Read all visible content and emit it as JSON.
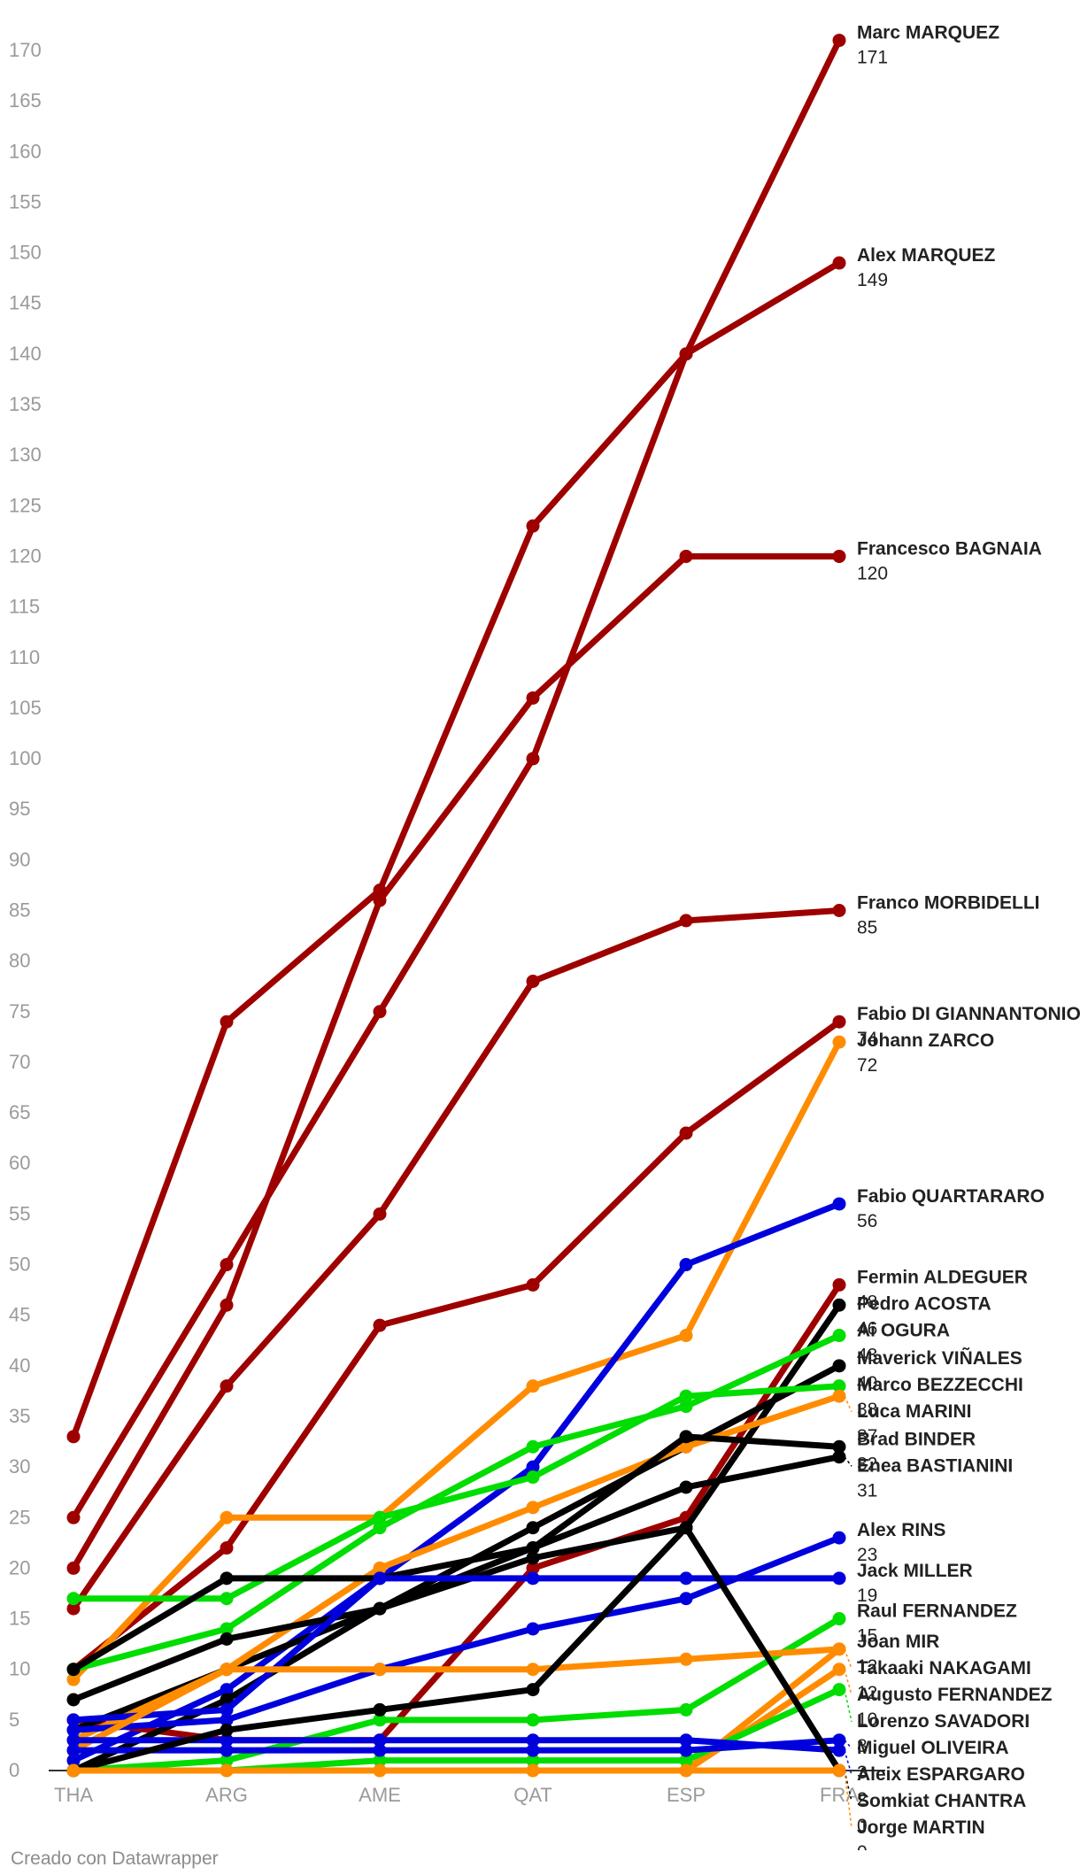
{
  "credit": "Creado con Datawrapper",
  "chart_data": {
    "type": "line",
    "title": "",
    "xlabel": "",
    "ylabel": "",
    "ylim": [
      0,
      170
    ],
    "yticks": [
      0,
      5,
      10,
      15,
      20,
      25,
      30,
      35,
      40,
      45,
      50,
      55,
      60,
      65,
      70,
      75,
      80,
      85,
      90,
      95,
      100,
      105,
      110,
      115,
      120,
      125,
      130,
      135,
      140,
      145,
      150,
      155,
      160,
      165,
      170
    ],
    "categories": [
      "THA",
      "ARG",
      "AME",
      "QAT",
      "ESP",
      "FRA"
    ],
    "colors": {
      "red": "#9e0000",
      "orange": "#ff8c00",
      "green": "#00dd00",
      "blue": "#0000dd",
      "black": "#000000"
    },
    "series": [
      {
        "name": "Marc MARQUEZ",
        "label": "Marc MARQUEZ",
        "color": "red",
        "values": [
          25,
          50,
          75,
          100,
          140,
          171
        ]
      },
      {
        "name": "Alex MARQUEZ",
        "label": "Alex MARQUEZ",
        "color": "red",
        "values": [
          33,
          74,
          87,
          123,
          140,
          149
        ]
      },
      {
        "name": "Francesco BAGNAIA",
        "label": "Francesco BAGNAIA",
        "color": "red",
        "values": [
          20,
          46,
          86,
          106,
          120,
          120
        ]
      },
      {
        "name": "Franco MORBIDELLI",
        "label": "Franco MORBIDELLI",
        "color": "red",
        "values": [
          16,
          38,
          55,
          78,
          84,
          85
        ]
      },
      {
        "name": "Fabio DI GIANNANTONIO",
        "label": "Fabio DI GIANNANTONIO",
        "color": "red",
        "values": [
          10,
          22,
          44,
          48,
          63,
          74
        ]
      },
      {
        "name": "Johann ZARCO",
        "label": "Johann ZARCO",
        "color": "orange",
        "values": [
          9,
          25,
          25,
          38,
          43,
          72
        ]
      },
      {
        "name": "Fabio QUARTARARO",
        "label": "Fabio QUARTARARO",
        "color": "blue",
        "values": [
          1,
          8,
          19,
          30,
          50,
          56
        ]
      },
      {
        "name": "Fermin ALDEGUER",
        "label": "Fermin ALDEGUER",
        "color": "red",
        "values": [
          5,
          3,
          3,
          20,
          25,
          48
        ]
      },
      {
        "name": "Pedro ACOSTA",
        "label": "Pedro ACOSTA",
        "color": "black",
        "values": [
          4,
          10,
          16,
          21,
          24,
          46
        ]
      },
      {
        "name": "Ai OGURA",
        "label": "Ai OGURA",
        "color": "green",
        "values": [
          10,
          14,
          24,
          32,
          36,
          43
        ]
      },
      {
        "name": "Maverick VIÑALES",
        "label": "Maverick VIÑALES",
        "color": "black",
        "values": [
          0,
          7,
          16,
          24,
          32,
          40
        ]
      },
      {
        "name": "Marco BEZZECCHI",
        "label": "Marco BEZZECCHI",
        "color": "green",
        "values": [
          17,
          17,
          25,
          29,
          37,
          38
        ]
      },
      {
        "name": "Luca MARINI",
        "label": "Luca MARINI",
        "color": "orange",
        "values": [
          3,
          10,
          20,
          26,
          32,
          37
        ]
      },
      {
        "name": "Brad BINDER",
        "label": "Brad BINDER",
        "color": "black",
        "values": [
          10,
          19,
          19,
          22,
          33,
          32
        ]
      },
      {
        "name": "Enea BASTIANINI",
        "label": "Enea BASTIANINI",
        "color": "black",
        "values": [
          7,
          13,
          16,
          22,
          28,
          31
        ]
      },
      {
        "name": "Alex RINS",
        "label": "Alex RINS",
        "color": "blue",
        "values": [
          4,
          5,
          10,
          14,
          17,
          23
        ]
      },
      {
        "name": "Jack MILLER",
        "label": "Jack MILLER",
        "color": "blue",
        "values": [
          5,
          6,
          19,
          19,
          19,
          19
        ]
      },
      {
        "name": "Raul FERNANDEZ",
        "label": "Raul FERNANDEZ",
        "color": "green",
        "values": [
          0,
          1,
          5,
          5,
          6,
          15
        ]
      },
      {
        "name": "Joan MIR",
        "label": "Joan MIR",
        "color": "orange",
        "values": [
          0,
          0,
          0,
          0,
          0,
          12
        ]
      },
      {
        "name": "Takaaki NAKAGAMI",
        "label": "Takaaki NAKAGAMI",
        "color": "orange",
        "values": [
          2,
          10,
          10,
          10,
          11,
          12
        ]
      },
      {
        "name": "Augusto FERNANDEZ",
        "label": "Augusto FERNANDEZ",
        "color": "orange",
        "values": [
          0,
          0,
          0,
          0,
          0,
          10
        ]
      },
      {
        "name": "Lorenzo SAVADORI",
        "label": "Lorenzo SAVADORI",
        "color": "green",
        "values": [
          0,
          0,
          1,
          1,
          1,
          8
        ]
      },
      {
        "name": "Miguel OLIVEIRA",
        "label": "Miguel OLIVEIRA",
        "color": "blue",
        "values": [
          2,
          2,
          2,
          2,
          2,
          3
        ]
      },
      {
        "name": "Aleix ESPARGARO",
        "label": "Aleix ESPARGARO",
        "color": "blue",
        "values": [
          3,
          3,
          3,
          3,
          3,
          2
        ]
      },
      {
        "name": "Somkiat CHANTRA",
        "label": "Somkiat CHANTRA",
        "color": "black",
        "values": [
          0,
          4,
          6,
          8,
          24,
          0
        ]
      },
      {
        "name": "Jorge MARTIN",
        "label": "Jorge MARTIN",
        "color": "orange",
        "values": [
          0,
          0,
          0,
          0,
          0,
          0
        ]
      }
    ]
  }
}
